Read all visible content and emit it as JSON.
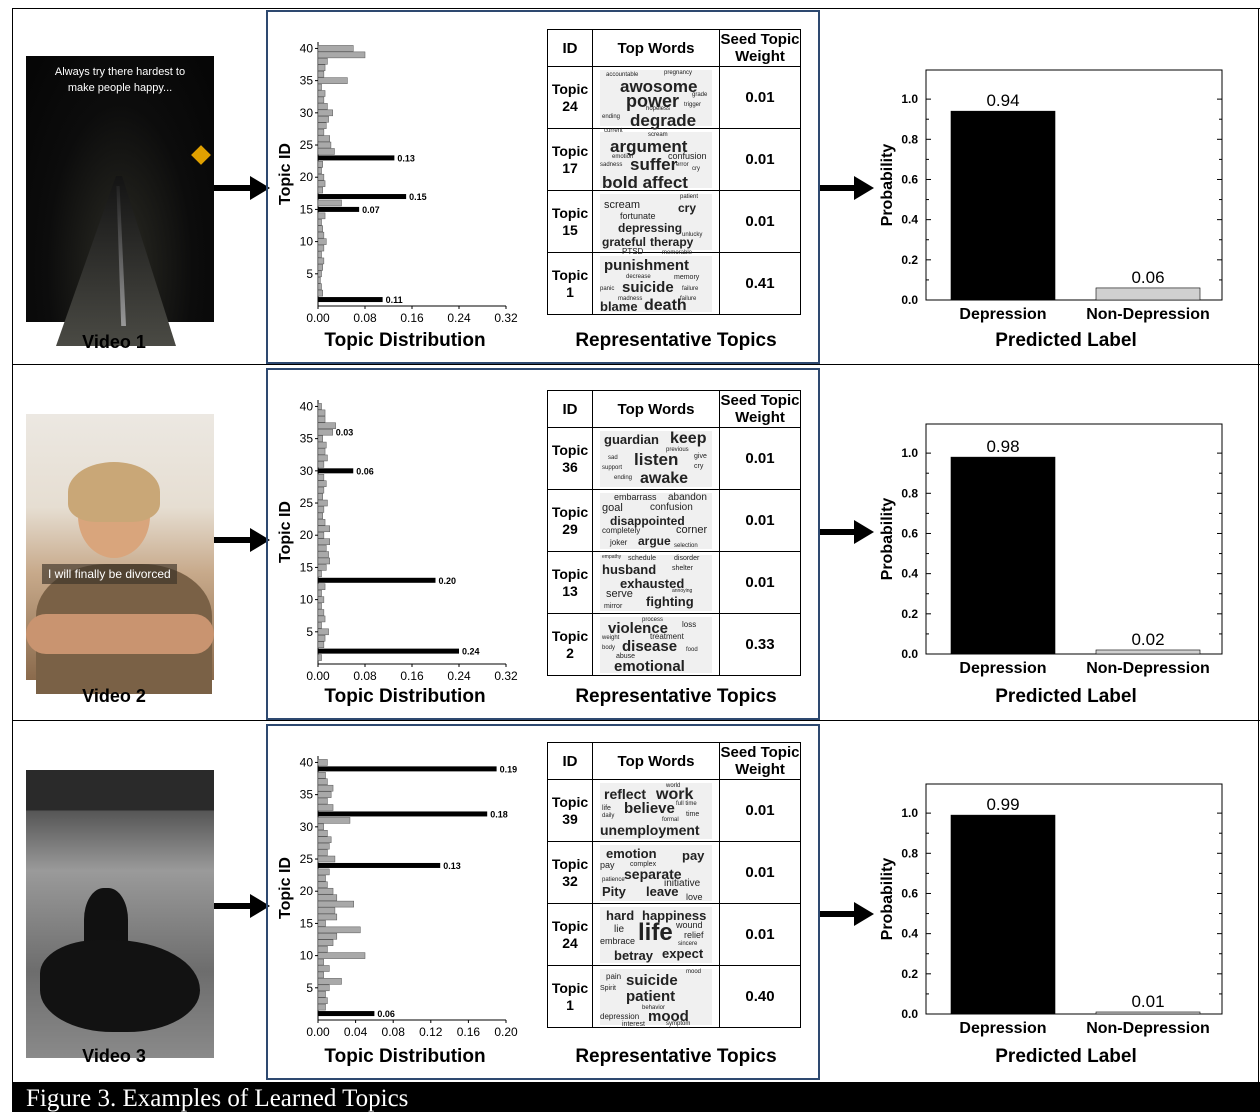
{
  "figure_caption": "Figure 3. Examples of Learned Topics",
  "headers": {
    "id": "ID",
    "top_words": "Top Words",
    "seed_weight_1": "Seed Topic",
    "seed_weight_2": "Weight"
  },
  "labels": {
    "topic_distribution": "Topic Distribution",
    "representative_topics": "Representative Topics",
    "predicted_label": "Predicted Label",
    "topic_id": "Topic ID",
    "probability": "Probability",
    "depression": "Depression",
    "non_depression": "Non-Depression"
  },
  "videos": [
    {
      "label": "Video 1",
      "overlay_text_1": "Always try there hardest to",
      "overlay_text_2": "make people happy...",
      "topics": [
        {
          "id_word": "Topic",
          "id_num": "24",
          "weight": "0.01",
          "words": [
            [
              "accountable",
              6,
              6,
              2
            ],
            [
              "pregnancy",
              6,
              64,
              0
            ],
            [
              "awosome",
              17,
              20,
              8
            ],
            [
              "power",
              18,
              26,
              22
            ],
            [
              "grade",
              6,
              92,
              22
            ],
            [
              "trigger",
              6,
              84,
              32
            ],
            [
              "hopeless",
              6,
              46,
              36
            ],
            [
              "ending",
              6,
              2,
              44
            ],
            [
              "degrade",
              17,
              30,
              42
            ],
            [
              "current",
              6,
              4,
              58
            ]
          ]
        },
        {
          "id_word": "Topic",
          "id_num": "17",
          "weight": "0.01",
          "words": [
            [
              "scream",
              6,
              48,
              0
            ],
            [
              "argument",
              17,
              10,
              6
            ],
            [
              "emotion",
              6,
              12,
              22
            ],
            [
              "confusion",
              9,
              68,
              20
            ],
            [
              "sadness",
              6,
              0,
              30
            ],
            [
              "suffer",
              17,
              30,
              24
            ],
            [
              "error",
              6,
              76,
              30
            ],
            [
              "cry",
              6,
              92,
              34
            ],
            [
              "bold affect",
              17,
              2,
              42
            ]
          ]
        },
        {
          "id_word": "Topic",
          "id_num": "15",
          "weight": "0.01",
          "words": [
            [
              "patient",
              6,
              80,
              0
            ],
            [
              "scream",
              11,
              4,
              6
            ],
            [
              "cry",
              12,
              78,
              8
            ],
            [
              "fortunate",
              9,
              20,
              18
            ],
            [
              "depressing",
              12,
              18,
              28
            ],
            [
              "unlucky",
              6,
              82,
              38
            ],
            [
              "grateful",
              12,
              2,
              42
            ],
            [
              "therapy",
              12,
              50,
              42
            ],
            [
              "PTSD",
              8,
              22,
              54
            ],
            [
              "memorable",
              6,
              62,
              56
            ]
          ]
        },
        {
          "id_word": "Topic",
          "id_num": "1",
          "weight": "0.41",
          "words": [
            [
              "punishment",
              15,
              4,
              2
            ],
            [
              "decrease",
              6,
              26,
              18
            ],
            [
              "memory",
              7,
              74,
              18
            ],
            [
              "panic",
              6,
              0,
              30
            ],
            [
              "suicide",
              15,
              22,
              24
            ],
            [
              "failure",
              6,
              82,
              30
            ],
            [
              "madness",
              6,
              18,
              40
            ],
            [
              "failure",
              6,
              80,
              40
            ],
            [
              "blame",
              13,
              0,
              44
            ],
            [
              "death",
              16,
              44,
              42
            ]
          ]
        }
      ],
      "dist_max": "0.32",
      "dist_ticks": [
        "0.00",
        "0.08",
        "0.16",
        "0.24",
        "0.32"
      ],
      "dist_values": [
        0.11,
        0.008,
        0.006,
        0.004,
        0.006,
        0.008,
        0.01,
        0.006,
        0.01,
        0.014,
        0.01,
        0.008,
        0.006,
        0.012,
        0.07,
        0.04,
        0.15,
        0.008,
        0.012,
        0.01,
        0.006,
        0.008,
        0.13,
        0.028,
        0.022,
        0.02,
        0.01,
        0.014,
        0.018,
        0.025,
        0.016,
        0.01,
        0.012,
        0.006,
        0.05,
        0.01,
        0.012,
        0.016,
        0.08,
        0.06
      ],
      "dist_labels": [
        [
          1,
          "0.11"
        ],
        [
          15,
          "0.07"
        ],
        [
          17,
          "0.15"
        ],
        [
          23,
          "0.13"
        ]
      ],
      "highlight": [
        1,
        15,
        17,
        23
      ],
      "probs": [
        0.94,
        0.06
      ],
      "prob_labels": [
        "0.94",
        "0.06"
      ]
    },
    {
      "label": "Video 2",
      "overlay_text_1": "I will finally be divorced",
      "overlay_text_2": "",
      "topics": [
        {
          "id_word": "Topic",
          "id_num": "36",
          "weight": "0.01",
          "words": [
            [
              "guardian",
              13,
              4,
              2
            ],
            [
              "keep",
              16,
              70,
              0
            ],
            [
              "previous",
              6,
              66,
              16
            ],
            [
              "sad",
              6,
              8,
              24
            ],
            [
              "listen",
              17,
              34,
              20
            ],
            [
              "give",
              7,
              94,
              22
            ],
            [
              "support",
              6,
              2,
              34
            ],
            [
              "cry",
              7,
              94,
              32
            ],
            [
              "ending",
              6,
              14,
              44
            ],
            [
              "awake",
              16,
              40,
              40
            ]
          ]
        },
        {
          "id_word": "Topic",
          "id_num": "29",
          "weight": "0.01",
          "words": [
            [
              "embarrass",
              9,
              14,
              0
            ],
            [
              "abandon",
              10,
              68,
              0
            ],
            [
              "goal",
              11,
              2,
              10
            ],
            [
              "confusion",
              10,
              50,
              10
            ],
            [
              "disappointed",
              12,
              10,
              22
            ],
            [
              "completely",
              8,
              2,
              34
            ],
            [
              "corner",
              11,
              76,
              32
            ],
            [
              "joker",
              8,
              10,
              46
            ],
            [
              "argue",
              12,
              38,
              42
            ],
            [
              "selection",
              6,
              74,
              50
            ]
          ]
        },
        {
          "id_word": "Topic",
          "id_num": "13",
          "weight": "0.01",
          "words": [
            [
              "empathy",
              5,
              2,
              0
            ],
            [
              "schedule",
              7,
              28,
              0
            ],
            [
              "disorder",
              7,
              74,
              0
            ],
            [
              "husband",
              13,
              2,
              8
            ],
            [
              "shelter",
              7,
              72,
              10
            ],
            [
              "exhausted",
              13,
              20,
              22
            ],
            [
              "annoying",
              5,
              72,
              34
            ],
            [
              "serve",
              11,
              6,
              34
            ],
            [
              "fighting",
              13,
              46,
              40
            ],
            [
              "mirror",
              7,
              4,
              48
            ]
          ]
        },
        {
          "id_word": "Topic",
          "id_num": "2",
          "weight": "0.33",
          "words": [
            [
              "process",
              6,
              42,
              0
            ],
            [
              "violence",
              15,
              8,
              4
            ],
            [
              "loss",
              8,
              82,
              4
            ],
            [
              "weight",
              6,
              2,
              18
            ],
            [
              "treatment",
              8,
              50,
              16
            ],
            [
              "body",
              6,
              2,
              28
            ],
            [
              "disease",
              15,
              22,
              22
            ],
            [
              "food",
              6,
              86,
              30
            ],
            [
              "abuse",
              7,
              16,
              36
            ],
            [
              "emotional",
              15,
              14,
              42
            ]
          ]
        }
      ],
      "dist_max": "0.32",
      "dist_ticks": [
        "0.00",
        "0.08",
        "0.16",
        "0.24",
        "0.32"
      ],
      "dist_values": [
        0.006,
        0.24,
        0.01,
        0.012,
        0.018,
        0.006,
        0.012,
        0.01,
        0.006,
        0.01,
        0.006,
        0.012,
        0.2,
        0.006,
        0.014,
        0.02,
        0.018,
        0.014,
        0.02,
        0.01,
        0.02,
        0.012,
        0.008,
        0.01,
        0.016,
        0.008,
        0.01,
        0.014,
        0.01,
        0.06,
        0.01,
        0.016,
        0.012,
        0.014,
        0.008,
        0.025,
        0.03,
        0.012,
        0.012,
        0.006
      ],
      "dist_labels": [
        [
          2,
          "0.24"
        ],
        [
          13,
          "0.20"
        ],
        [
          30,
          "0.06"
        ],
        [
          36,
          "0.03"
        ]
      ],
      "highlight": [
        2,
        13,
        30
      ],
      "probs": [
        0.98,
        0.02
      ],
      "prob_labels": [
        "0.98",
        "0.02"
      ]
    },
    {
      "label": "Video 3",
      "overlay_text_1": "",
      "overlay_text_2": "",
      "topics": [
        {
          "id_word": "Topic",
          "id_num": "39",
          "weight": "0.01",
          "words": [
            [
              "world",
              6,
              66,
              0
            ],
            [
              "reflect",
              14,
              4,
              4
            ],
            [
              "work",
              16,
              56,
              4
            ],
            [
              "full time",
              6,
              76,
              18
            ],
            [
              "life",
              7,
              2,
              22
            ],
            [
              "believe",
              15,
              24,
              18
            ],
            [
              "time",
              7,
              86,
              28
            ],
            [
              "daily",
              6,
              2,
              30
            ],
            [
              "formal",
              6,
              62,
              34
            ],
            [
              "unemployment",
              14,
              0,
              40
            ]
          ]
        },
        {
          "id_word": "Topic",
          "id_num": "32",
          "weight": "0.01",
          "words": [
            [
              "emotion",
              13,
              6,
              2
            ],
            [
              "pay",
              13,
              82,
              4
            ],
            [
              "complex",
              7,
              30,
              16
            ],
            [
              "pay",
              9,
              0,
              16
            ],
            [
              "separate",
              14,
              24,
              22
            ],
            [
              "patience",
              6,
              2,
              32
            ],
            [
              "initiative",
              10,
              64,
              34
            ],
            [
              "Pity",
              13,
              2,
              40
            ],
            [
              "leave",
              13,
              46,
              40
            ],
            [
              "love",
              9,
              86,
              48
            ]
          ]
        },
        {
          "id_word": "Topic",
          "id_num": "24",
          "weight": "0.01",
          "words": [
            [
              "hard",
              13,
              6,
              2
            ],
            [
              "happiness",
              13,
              42,
              2
            ],
            [
              "wound",
              9,
              76,
              14
            ],
            [
              "lie",
              10,
              14,
              18
            ],
            [
              "life",
              24,
              38,
              14
            ],
            [
              "relief",
              9,
              84,
              24
            ],
            [
              "embrace",
              9,
              0,
              30
            ],
            [
              "sincere",
              6,
              78,
              34
            ],
            [
              "betray",
              13,
              14,
              42
            ],
            [
              "expect",
              13,
              62,
              40
            ]
          ]
        },
        {
          "id_word": "Topic",
          "id_num": "1",
          "weight": "0.40",
          "words": [
            [
              "mood",
              6,
              86,
              0
            ],
            [
              "pain",
              8,
              6,
              4
            ],
            [
              "suicide",
              15,
              26,
              4
            ],
            [
              "Spirit",
              7,
              0,
              16
            ],
            [
              "patient",
              15,
              26,
              20
            ],
            [
              "behavior",
              6,
              42,
              36
            ],
            [
              "depression",
              8,
              0,
              44
            ],
            [
              "mood",
              15,
              48,
              40
            ],
            [
              "interest",
              7,
              22,
              52
            ],
            [
              "symptom",
              6,
              66,
              52
            ]
          ]
        }
      ],
      "dist_max": "0.20",
      "dist_ticks": [
        "0.00",
        "0.04",
        "0.08",
        "0.12",
        "0.16",
        "0.20"
      ],
      "dist_values": [
        0.06,
        0.008,
        0.01,
        0.008,
        0.012,
        0.025,
        0.006,
        0.012,
        0.006,
        0.05,
        0.01,
        0.016,
        0.02,
        0.045,
        0.008,
        0.02,
        0.018,
        0.038,
        0.02,
        0.016,
        0.01,
        0.008,
        0.012,
        0.13,
        0.018,
        0.01,
        0.012,
        0.014,
        0.01,
        0.006,
        0.034,
        0.18,
        0.016,
        0.01,
        0.014,
        0.016,
        0.01,
        0.008,
        0.19,
        0.01
      ],
      "dist_labels": [
        [
          1,
          "0.06"
        ],
        [
          24,
          "0.13"
        ],
        [
          32,
          "0.18"
        ],
        [
          39,
          "0.19"
        ]
      ],
      "highlight": [
        1,
        24,
        32,
        39
      ],
      "probs": [
        0.99,
        0.01
      ],
      "prob_labels": [
        "0.99",
        "0.01"
      ]
    }
  ]
}
